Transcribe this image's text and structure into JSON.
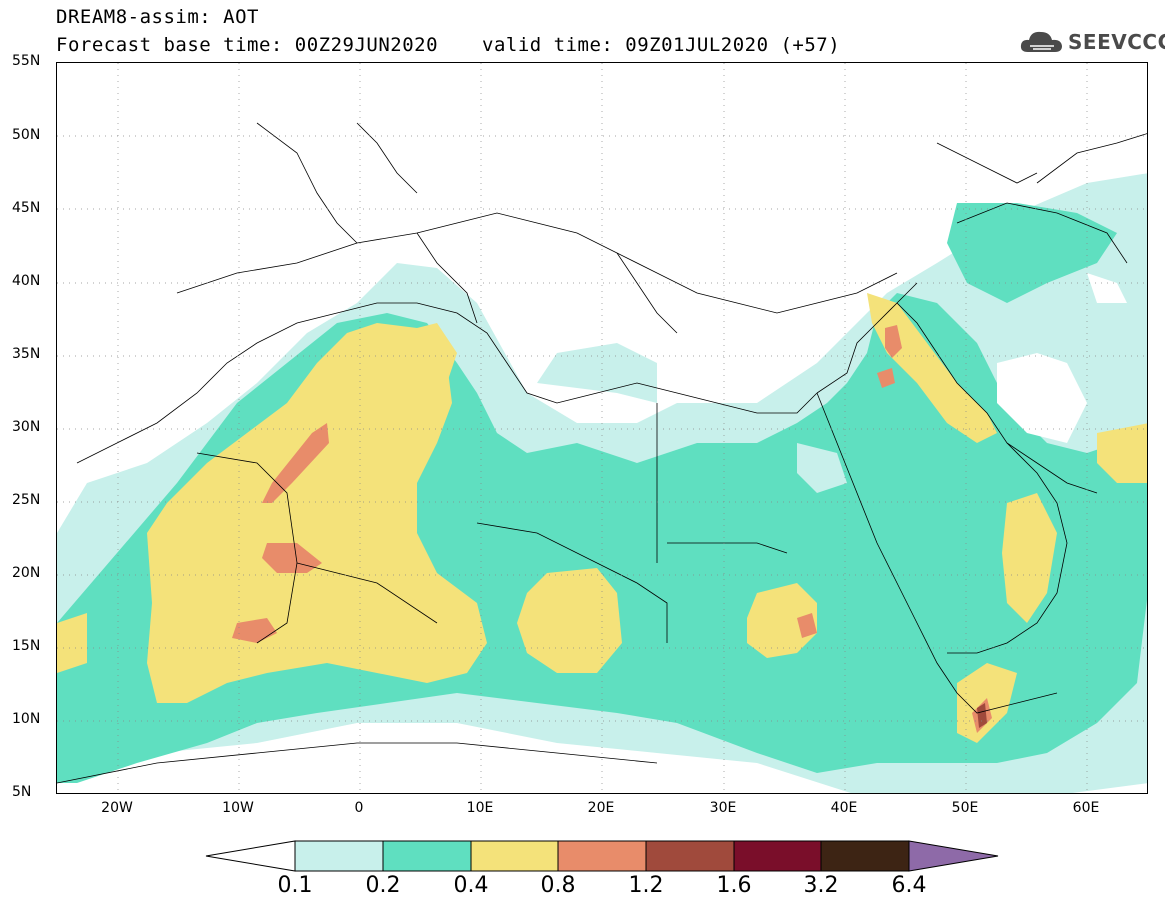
{
  "title": {
    "line1": "DREAM8-assim: AOT",
    "line2": "Forecast base time: 00Z29JUN2020",
    "line3": "valid time: 09Z01JUL2020 (+57)"
  },
  "logo": {
    "text": "SEEVCCC",
    "icon": "cloud-icon"
  },
  "map": {
    "variable": "AOT",
    "lat_range": [
      5,
      55
    ],
    "lon_range": [
      -25,
      65
    ],
    "lat_ticks": [
      "55N",
      "50N",
      "45N",
      "40N",
      "35N",
      "30N",
      "25N",
      "20N",
      "15N",
      "10N",
      "5N"
    ],
    "lon_ticks": [
      "20W",
      "10W",
      "0",
      "10E",
      "20E",
      "30E",
      "40E",
      "50E",
      "60E"
    ],
    "grid": "dotted",
    "colors": {
      "c01": "#c8f0eb",
      "c02": "#5fdfc0",
      "c04": "#f4e27a",
      "c08": "#e88c6a",
      "c12": "#a04a3c",
      "c16": "#7a0e2a",
      "c32": "#3d2414",
      "c64": "#8e6aa8"
    }
  },
  "colorbar": {
    "levels": [
      "0.1",
      "0.2",
      "0.4",
      "0.8",
      "1.2",
      "1.6",
      "3.2",
      "6.4"
    ],
    "colors": [
      "#c8f0eb",
      "#5fdfc0",
      "#f4e27a",
      "#e88c6a",
      "#a04a3c",
      "#7a0e2a",
      "#3d2414"
    ],
    "under_color": "#ffffff",
    "over_color": "#8e6aa8"
  }
}
